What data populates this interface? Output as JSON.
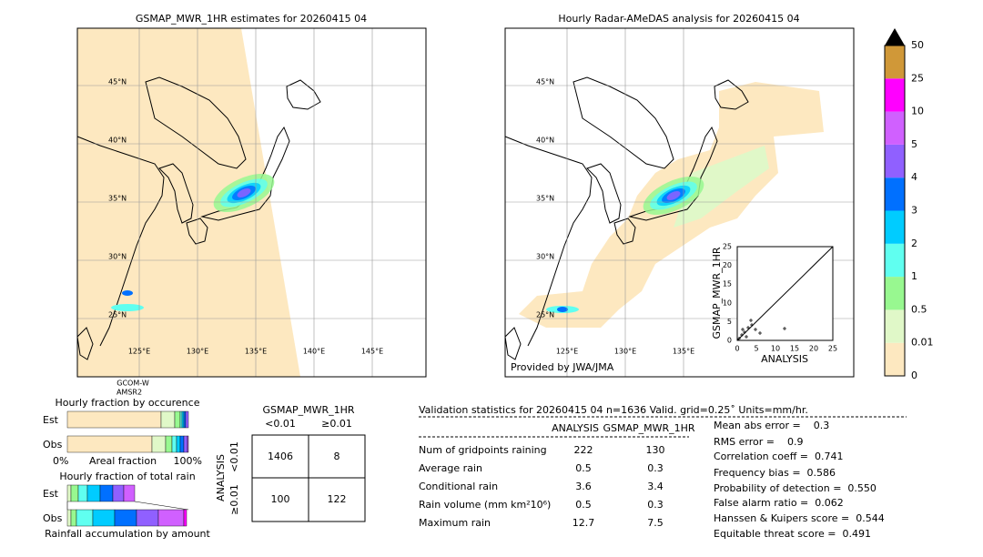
{
  "left_map": {
    "title": "GSMAP_MWR_1HR estimates for 20260415 04",
    "lat_labels": [
      "45°N",
      "40°N",
      "35°N",
      "30°N",
      "25°N"
    ],
    "lon_labels": [
      "125°E",
      "130°E",
      "135°E",
      "140°E",
      "145°E"
    ],
    "satellite": [
      "GCOM-W",
      "AMSR2"
    ]
  },
  "right_map": {
    "title": "Hourly Radar-AMeDAS analysis for 20260415 04",
    "lat_labels": [
      "45°N",
      "40°N",
      "35°N",
      "30°N",
      "25°N"
    ],
    "lon_labels": [
      "125°E",
      "130°E",
      "135°E"
    ],
    "credit": "Provided by JWA/JMA",
    "inset": {
      "xlabel": "ANALYSIS",
      "ylabel": "GSMAP_MWR_1HR",
      "ticks": [
        "0",
        "5",
        "10",
        "15",
        "20",
        "25"
      ]
    }
  },
  "colorbar": {
    "labels": [
      "0",
      "0.01",
      "0.5",
      "1",
      "2",
      "3",
      "4",
      "5",
      "10",
      "25",
      "50"
    ],
    "colors": [
      "#fde8c0",
      "#e0f8c8",
      "#98f890",
      "#60fff0",
      "#00ccff",
      "#0070ff",
      "#9060ff",
      "#d060ff",
      "#ff00ff",
      "#d09838"
    ]
  },
  "occurrence": {
    "title": "Hourly fraction by occurence",
    "rows": [
      "Est",
      "Obs"
    ],
    "axis": [
      "0%",
      "Areal fraction",
      "100%"
    ]
  },
  "total_rain": {
    "title": "Hourly fraction of total rain",
    "rows": [
      "Est",
      "Obs"
    ],
    "xlabel": "Rainfall accumulation by amount"
  },
  "contingency": {
    "title": "GSMAP_MWR_1HR",
    "cols": [
      "<0.01",
      "≥0.01"
    ],
    "ylabel": "ANALYSIS",
    "rows": [
      {
        "label": "<0.01",
        "cells": [
          "1406",
          "8"
        ]
      },
      {
        "label": "≥0.01",
        "cells": [
          "100",
          "122"
        ]
      }
    ]
  },
  "validation": {
    "title": "Validation statistics for 20260415 04  n=1636 Valid. grid=0.25˚ Units=mm/hr.",
    "cols": [
      "ANALYSIS",
      "GSMAP_MWR_1HR"
    ],
    "rows": [
      {
        "label": "Num of gridpoints raining",
        "values": [
          "222",
          "130"
        ]
      },
      {
        "label": "Average rain",
        "values": [
          "0.5",
          "0.3"
        ]
      },
      {
        "label": "Conditional rain",
        "values": [
          "3.6",
          "3.4"
        ]
      },
      {
        "label": "Rain volume (mm km²10⁶)",
        "values": [
          "0.5",
          "0.3"
        ]
      },
      {
        "label": "Maximum rain",
        "values": [
          "12.7",
          "7.5"
        ]
      }
    ],
    "scores": [
      "Mean abs error =    0.3",
      "RMS error =    0.9",
      "Correlation coeff =  0.741",
      "Frequency bias =  0.586",
      "Probability of detection =  0.550",
      "False alarm ratio =  0.062",
      "Hanssen & Kuipers score =  0.544",
      "Equitable threat score =  0.491"
    ]
  }
}
